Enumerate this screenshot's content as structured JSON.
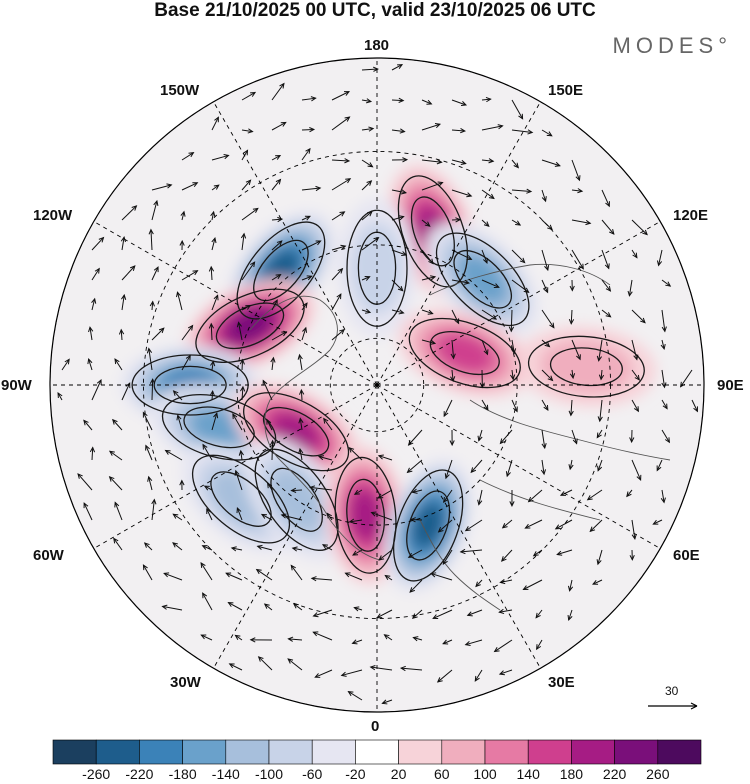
{
  "title": "Base 21/10/2025 00 UTC, valid 23/10/2025 06 UTC",
  "brand": "MODES°",
  "longitude_labels": {
    "top": "180",
    "bottom": "0",
    "left": "90W",
    "right": "90E",
    "upper_left": "150W",
    "upper_right": "150E",
    "mid_upper_left": "120W",
    "mid_upper_right": "120E",
    "mid_lower_left": "60W",
    "mid_lower_right": "60E",
    "lower_left": "30W",
    "lower_right": "30E"
  },
  "vector_scale": {
    "label": "30"
  },
  "colorbar": {
    "ticks": [
      "-260",
      "-220",
      "-180",
      "-140",
      "-100",
      "-60",
      "-20",
      "20",
      "60",
      "100",
      "140",
      "180",
      "220",
      "260"
    ],
    "colors": [
      "#1b3f5f",
      "#1e5d8c",
      "#3b82b8",
      "#6aa1cb",
      "#a7bfdc",
      "#c8d3e8",
      "#e6e6f2",
      "#ffffff",
      "#f7d3d9",
      "#f0aebe",
      "#e67aa4",
      "#cf3f8e",
      "#a61c84",
      "#7a0f7a",
      "#4d0a5e"
    ]
  },
  "anomalies": [
    {
      "lon": -140,
      "lat": 58,
      "value": -240,
      "label": "negative"
    },
    {
      "lon": -115,
      "lat": 60,
      "value": 250,
      "label": "positive"
    },
    {
      "lon": -90,
      "lat": 50,
      "value": -200,
      "label": "negative"
    },
    {
      "lon": -75,
      "lat": 55,
      "value": -160,
      "label": "negative"
    },
    {
      "lon": -60,
      "lat": 70,
      "value": 210,
      "label": "positive"
    },
    {
      "lon": -50,
      "lat": 52,
      "value": -150,
      "label": "negative"
    },
    {
      "lon": -35,
      "lat": 60,
      "value": -130,
      "label": "negative"
    },
    {
      "lon": -5,
      "lat": 62,
      "value": 230,
      "label": "positive"
    },
    {
      "lon": 20,
      "lat": 58,
      "value": -250,
      "label": "negative"
    },
    {
      "lon": 160,
      "lat": 55,
      "value": 220,
      "label": "positive"
    },
    {
      "lon": 135,
      "lat": 58,
      "value": -170,
      "label": "negative"
    },
    {
      "lon": 110,
      "lat": 70,
      "value": 170,
      "label": "positive"
    },
    {
      "lon": 95,
      "lat": 45,
      "value": 80,
      "label": "positive"
    },
    {
      "lon": 180,
      "lat": 65,
      "value": -90,
      "label": "negative"
    }
  ]
}
